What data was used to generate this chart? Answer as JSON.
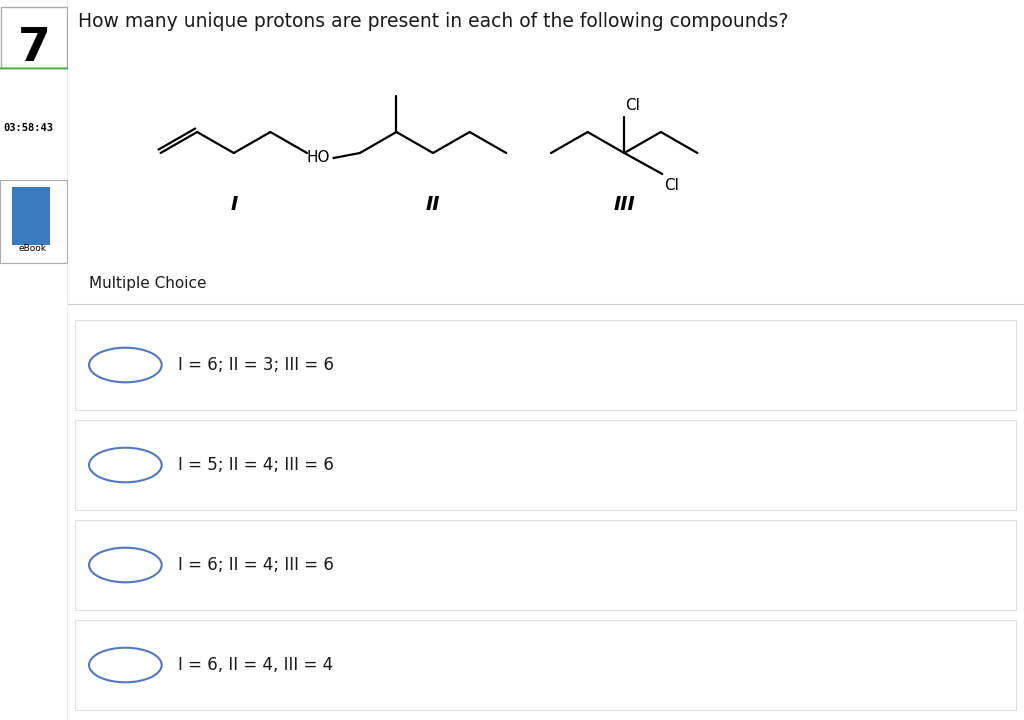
{
  "title": "How many unique protons are present in each of the following compounds?",
  "question_number": "7",
  "timer": "03:58:43",
  "ebook_label": "eBook",
  "multiple_choice_label": "Multiple Choice",
  "choices": [
    "I = 6; II = 3; III = 6",
    "I = 5; II = 4; III = 6",
    "I = 6; II = 4; III = 6",
    "I = 6, II = 4, III = 4"
  ],
  "bg_color": "#ffffff",
  "mc_bg_color": "#ebebeb",
  "choice_bg_color": "#ffffff",
  "text_color": "#1a1a1a",
  "timer_border": "#4caf50",
  "circle_color": "#5577bb",
  "sidebar_box_border": "#aaaaaa",
  "font_size_title": 13.5,
  "font_size_choice": 12,
  "lw": 1.6
}
